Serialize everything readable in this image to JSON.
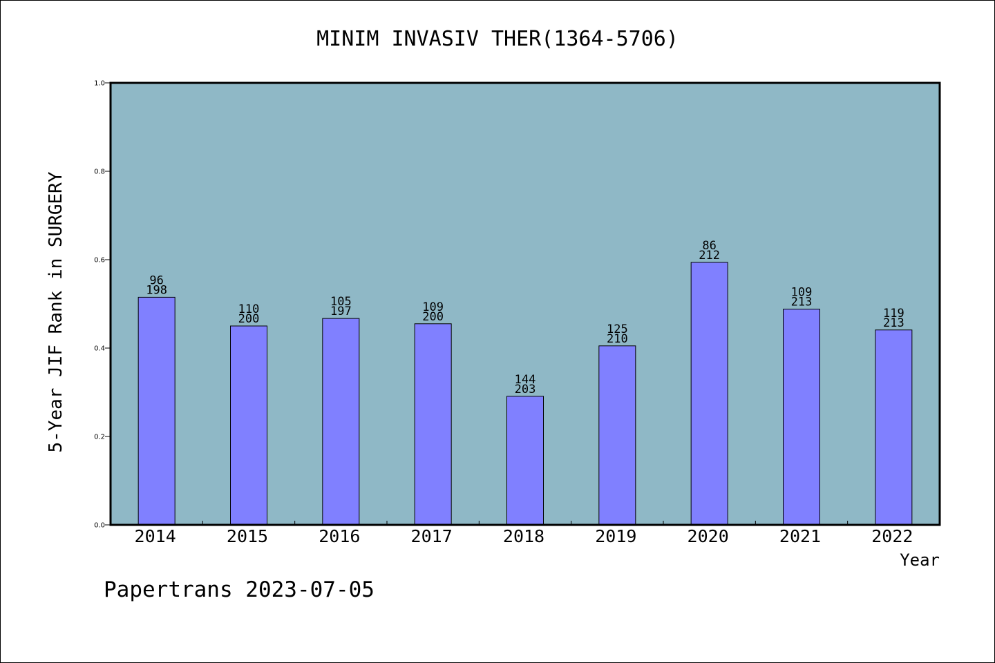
{
  "chart_data": {
    "type": "bar",
    "title": "MINIM INVASIV THER(1364-5706)",
    "xlabel": "Year",
    "ylabel": "5-Year JIF Rank in SURGERY",
    "ylim": [
      0,
      1.0
    ],
    "yticks": [
      "0.0",
      "0.2",
      "0.4",
      "0.6",
      "0.8",
      "1.0"
    ],
    "categories": [
      "2014",
      "2015",
      "2016",
      "2017",
      "2018",
      "2019",
      "2020",
      "2021",
      "2022"
    ],
    "values": [
      0.515,
      0.45,
      0.467,
      0.455,
      0.291,
      0.405,
      0.594,
      0.488,
      0.441
    ],
    "rank": [
      "96",
      "110",
      "105",
      "109",
      "144",
      "125",
      "86",
      "109",
      "119"
    ],
    "total": [
      "198",
      "200",
      "197",
      "200",
      "203",
      "210",
      "212",
      "213",
      "213"
    ],
    "grid": false,
    "plot_background": "#8fb8c6",
    "bar_color": "#8080ff"
  },
  "footer": "Papertrans 2023-07-05"
}
